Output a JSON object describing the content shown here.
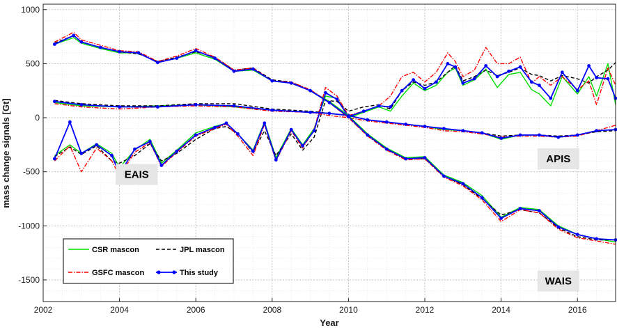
{
  "chart_data": {
    "type": "line",
    "xlabel": "Year",
    "ylabel": "mass change signals [Gt]",
    "xlim": [
      2002.0,
      2017.0
    ],
    "ylim": [
      -1700,
      1050
    ],
    "x_ticks": [
      2002,
      2004,
      2006,
      2008,
      2010,
      2012,
      2014,
      2016
    ],
    "y_ticks": [
      -1500,
      -1000,
      -500,
      0,
      500,
      1000
    ],
    "grid": true,
    "legend_position": "bottom-left",
    "legend": [
      {
        "label": "CSR mascon",
        "color": "#00dd00",
        "style": "solid"
      },
      {
        "label": "JPL mascon",
        "color": "#000000",
        "style": "dashed"
      },
      {
        "label": "GSFC mascon",
        "color": "#ff0000",
        "style": "dashdot"
      },
      {
        "label": "This study",
        "color": "#0000ff",
        "style": "solid-dots"
      }
    ],
    "annotations": [
      {
        "text": "EAIS",
        "x": 2004.45,
        "y": -525
      },
      {
        "text": "APIS",
        "x": 2015.5,
        "y": -380
      },
      {
        "text": "WAIS",
        "x": 2015.5,
        "y": -1510
      }
    ],
    "regions": [
      {
        "name": "EAIS",
        "x": [
          2002.3,
          2002.7,
          2003.0,
          2003.4,
          2003.8,
          2004.0,
          2004.4,
          2004.8,
          2005.1,
          2005.5,
          2006.0,
          2006.5,
          2006.8,
          2007.1,
          2007.5,
          2007.8,
          2008.1,
          2008.5,
          2008.8,
          2009.1,
          2009.4,
          2009.7,
          2010.0,
          2010.4,
          2010.8,
          2011.1,
          2011.4,
          2011.7,
          2012.0,
          2012.3,
          2012.6,
          2012.8,
          2013.0,
          2013.3,
          2013.6,
          2013.9,
          2014.2,
          2014.5,
          2014.8,
          2015.0,
          2015.3,
          2015.6,
          2016.0,
          2016.3,
          2016.5,
          2016.8,
          2017.0
        ],
        "series": [
          {
            "name": "CSR mascon",
            "values": [
              -350,
              -250,
              -330,
              -240,
              -330,
              -460,
              -300,
              -200,
              -420,
              -300,
              -140,
              -80,
              -50,
              -150,
              -300,
              -40,
              -370,
              -100,
              -250,
              -100,
              200,
              180,
              0,
              50,
              100,
              60,
              200,
              320,
              250,
              300,
              420,
              460,
              300,
              350,
              450,
              280,
              400,
              420,
              260,
              220,
              110,
              380,
              220,
              380,
              200,
              500,
              120
            ]
          },
          {
            "name": "JPL mascon",
            "values": [
              -360,
              -270,
              -340,
              -260,
              -400,
              -420,
              -350,
              -240,
              -400,
              -330,
              -200,
              -100,
              -80,
              -150,
              -320,
              -120,
              -350,
              -150,
              -300,
              -180,
              160,
              150,
              60,
              100,
              120,
              80,
              250,
              330,
              300,
              330,
              420,
              480,
              340,
              380,
              440,
              390,
              420,
              460,
              400,
              390,
              340,
              390,
              360,
              320,
              380,
              440,
              510
            ]
          },
          {
            "name": "GSFC mascon",
            "values": [
              -400,
              -260,
              -500,
              -280,
              -400,
              -540,
              -320,
              -230,
              -450,
              -320,
              -170,
              -100,
              -60,
              -170,
              -350,
              -60,
              -400,
              -120,
              -280,
              -110,
              280,
              200,
              20,
              60,
              110,
              200,
              380,
              420,
              330,
              420,
              600,
              520,
              380,
              440,
              650,
              500,
              500,
              560,
              320,
              380,
              300,
              380,
              260,
              340,
              120,
              460,
              300
            ]
          },
          {
            "name": "This study",
            "values": [
              -380,
              -40,
              -330,
              -250,
              -350,
              -520,
              -290,
              -220,
              -440,
              -310,
              -160,
              -90,
              -50,
              -150,
              -310,
              -50,
              -390,
              -110,
              -260,
              -120,
              230,
              170,
              10,
              60,
              110,
              100,
              250,
              350,
              270,
              330,
              500,
              470,
              320,
              360,
              480,
              380,
              430,
              470,
              330,
              300,
              180,
              420,
              250,
              480,
              370,
              360,
              180
            ]
          }
        ]
      },
      {
        "name": "APIS",
        "x": [
          2002.3,
          2003.0,
          2004.0,
          2005.0,
          2006.0,
          2007.0,
          2008.0,
          2009.0,
          2009.5,
          2010.0,
          2010.5,
          2011.0,
          2011.5,
          2012.0,
          2012.5,
          2013.0,
          2013.5,
          2014.0,
          2014.5,
          2015.0,
          2015.5,
          2016.0,
          2016.5,
          2017.0
        ],
        "series": [
          {
            "name": "CSR mascon",
            "values": [
              140,
              110,
              100,
              110,
              120,
              100,
              70,
              50,
              40,
              20,
              -20,
              -40,
              -60,
              -80,
              -110,
              -120,
              -140,
              -200,
              -160,
              -160,
              -180,
              -160,
              -120,
              -110
            ]
          },
          {
            "name": "JPL mascon",
            "values": [
              160,
              130,
              110,
              110,
              130,
              130,
              80,
              60,
              40,
              20,
              -20,
              -40,
              -60,
              -80,
              -100,
              -120,
              -140,
              -170,
              -160,
              -160,
              -170,
              -160,
              -130,
              -120
            ]
          },
          {
            "name": "GSFC mascon",
            "values": [
              130,
              100,
              80,
              100,
              110,
              100,
              60,
              50,
              20,
              0,
              -30,
              -50,
              -70,
              -90,
              -120,
              -130,
              -150,
              -180,
              -170,
              -170,
              -180,
              -170,
              -120,
              -70
            ]
          },
          {
            "name": "This study",
            "values": [
              150,
              120,
              100,
              100,
              120,
              110,
              70,
              50,
              40,
              20,
              -20,
              -40,
              -60,
              -80,
              -100,
              -120,
              -140,
              -190,
              -160,
              -160,
              -180,
              -160,
              -120,
              -110
            ]
          }
        ]
      },
      {
        "name": "WAIS",
        "x": [
          2002.3,
          2002.8,
          2003.0,
          2003.5,
          2004.0,
          2004.5,
          2005.0,
          2005.5,
          2006.0,
          2006.5,
          2007.0,
          2007.5,
          2008.0,
          2008.5,
          2009.0,
          2009.5,
          2010.0,
          2010.5,
          2011.0,
          2011.5,
          2012.0,
          2012.5,
          2013.0,
          2013.5,
          2014.0,
          2014.5,
          2015.0,
          2015.5,
          2016.0,
          2016.5,
          2017.0
        ],
        "series": [
          {
            "name": "CSR mascon",
            "values": [
              680,
              740,
              690,
              640,
              600,
              600,
              510,
              550,
              600,
              540,
              430,
              440,
              340,
              320,
              250,
              150,
              20,
              -150,
              -280,
              -370,
              -360,
              -530,
              -600,
              -720,
              -920,
              -830,
              -850,
              -1000,
              -1080,
              -1120,
              -1150
            ]
          },
          {
            "name": "JPL mascon",
            "values": [
              690,
              760,
              700,
              650,
              610,
              590,
              520,
              560,
              610,
              560,
              440,
              460,
              350,
              330,
              250,
              140,
              0,
              -160,
              -290,
              -380,
              -380,
              -540,
              -620,
              -750,
              -900,
              -850,
              -880,
              -1020,
              -1100,
              -1130,
              -1130
            ]
          },
          {
            "name": "GSFC mascon",
            "values": [
              700,
              790,
              720,
              670,
              620,
              610,
              520,
              570,
              640,
              560,
              440,
              460,
              340,
              330,
              260,
              140,
              0,
              -170,
              -300,
              -390,
              -380,
              -550,
              -630,
              -760,
              -960,
              -850,
              -880,
              -1030,
              -1110,
              -1140,
              -1170
            ]
          },
          {
            "name": "This study",
            "values": [
              680,
              760,
              700,
              650,
              610,
              600,
              510,
              550,
              620,
              550,
              430,
              450,
              340,
              320,
              250,
              140,
              10,
              -160,
              -290,
              -380,
              -370,
              -540,
              -610,
              -740,
              -930,
              -840,
              -860,
              -1010,
              -1080,
              -1120,
              -1130
            ]
          }
        ]
      }
    ]
  }
}
